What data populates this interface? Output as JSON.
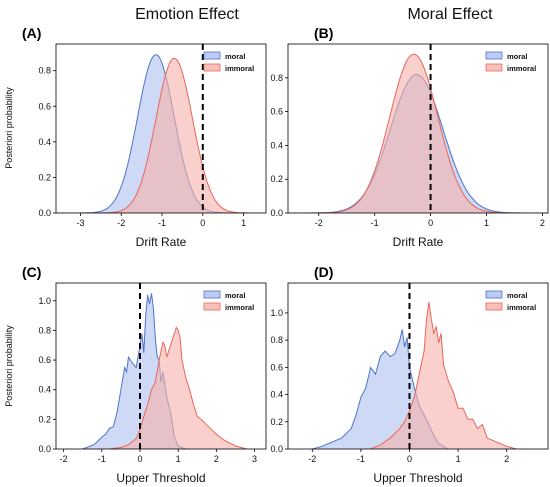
{
  "column_titles": [
    "Emotion Effect",
    "Moral Effect"
  ],
  "colors": {
    "moral_fill": "#aebff0",
    "moral_line": "#4e74c9",
    "immoral_fill": "#f6b0aa",
    "immoral_line": "#e8665a"
  },
  "chart_data": [
    {
      "type": "area",
      "label": "(A)",
      "xlabel": "Drift Rate",
      "ylabel": "Posteriori probability",
      "xlim": [
        -3.6,
        1.55
      ],
      "ylim": [
        0,
        0.95
      ],
      "xticks": [
        -3,
        -2,
        -1,
        0,
        1
      ],
      "yticks": [
        0.0,
        0.2,
        0.4,
        0.6,
        0.8
      ],
      "yticklabels": [
        "0.0",
        "0.2",
        "0.4",
        "0.6",
        "0.8"
      ],
      "vline": 0,
      "legend_position": "top-right",
      "series": [
        {
          "name": "moral",
          "shape": "smooth",
          "mean": -1.15,
          "sd": 0.45,
          "peak": 0.89
        },
        {
          "name": "immoral",
          "shape": "smooth",
          "mean": -0.7,
          "sd": 0.45,
          "peak": 0.87
        }
      ]
    },
    {
      "type": "area",
      "label": "(B)",
      "xlabel": "Drift Rate",
      "ylabel": "",
      "xlim": [
        -2.55,
        2.1
      ],
      "ylim": [
        0,
        1.0
      ],
      "xticks": [
        -2,
        -1,
        0,
        1,
        2
      ],
      "yticks": [
        0.0,
        0.2,
        0.4,
        0.6,
        0.8
      ],
      "yticklabels": [
        "0.0",
        "0.2",
        "0.4",
        "0.6",
        "0.8"
      ],
      "vline": 0,
      "legend_position": "top-right",
      "series": [
        {
          "name": "moral",
          "shape": "smooth",
          "mean": -0.25,
          "sd": 0.47,
          "peak": 0.82
        },
        {
          "name": "immoral",
          "shape": "smooth",
          "mean": -0.3,
          "sd": 0.43,
          "peak": 0.94
        }
      ]
    },
    {
      "type": "area",
      "label": "(C)",
      "xlabel": "Upper Threshold",
      "ylabel": "Posteriori probability",
      "xlim": [
        -2.2,
        3.3
      ],
      "ylim": [
        0,
        1.12
      ],
      "xticks": [
        -2,
        -1,
        0,
        1,
        2,
        3
      ],
      "yticks": [
        0.0,
        0.2,
        0.4,
        0.6,
        0.8,
        1.0
      ],
      "yticklabels": [
        "0.0",
        "0.2",
        "0.4",
        "0.6",
        "0.8",
        "1.0"
      ],
      "vline": 0,
      "legend_position": "top-right",
      "series": [
        {
          "name": "moral",
          "shape": "jagged",
          "x": [
            -1.5,
            -1.2,
            -1.0,
            -0.9,
            -0.8,
            -0.7,
            -0.6,
            -0.5,
            -0.4,
            -0.35,
            -0.3,
            -0.2,
            -0.1,
            0.0,
            0.05,
            0.1,
            0.15,
            0.2,
            0.25,
            0.3,
            0.35,
            0.4,
            0.45,
            0.5,
            0.55,
            0.6,
            0.7,
            0.8,
            0.9,
            1.0,
            1.2
          ],
          "y": [
            0.0,
            0.03,
            0.08,
            0.1,
            0.14,
            0.15,
            0.25,
            0.4,
            0.55,
            0.52,
            0.62,
            0.58,
            0.55,
            0.7,
            0.78,
            0.65,
            0.9,
            1.04,
            0.98,
            1.05,
            0.95,
            0.75,
            0.62,
            0.6,
            0.45,
            0.52,
            0.35,
            0.25,
            0.08,
            0.02,
            0.0
          ]
        },
        {
          "name": "immoral",
          "shape": "jagged",
          "x": [
            -0.8,
            -0.5,
            -0.3,
            -0.1,
            0.0,
            0.1,
            0.2,
            0.3,
            0.4,
            0.5,
            0.6,
            0.65,
            0.7,
            0.8,
            0.9,
            0.95,
            1.0,
            1.05,
            1.1,
            1.2,
            1.3,
            1.4,
            1.5,
            1.6,
            1.8,
            2.0,
            2.2,
            2.5,
            2.8
          ],
          "y": [
            0.0,
            0.01,
            0.03,
            0.07,
            0.13,
            0.22,
            0.3,
            0.4,
            0.45,
            0.6,
            0.72,
            0.7,
            0.62,
            0.7,
            0.78,
            0.82,
            0.8,
            0.75,
            0.6,
            0.48,
            0.4,
            0.3,
            0.22,
            0.2,
            0.15,
            0.1,
            0.06,
            0.02,
            0.0
          ]
        }
      ]
    },
    {
      "type": "area",
      "label": "(D)",
      "xlabel": "Upper Threshold",
      "ylabel": "",
      "xlim": [
        -2.5,
        2.85
      ],
      "ylim": [
        0,
        1.22
      ],
      "xticks": [
        -2,
        -1,
        0,
        1,
        2
      ],
      "yticks": [
        0.0,
        0.2,
        0.4,
        0.6,
        0.8,
        1.0
      ],
      "yticklabels": [
        "0.0",
        "0.2",
        "0.4",
        "0.6",
        "0.8",
        "1.0"
      ],
      "vline": 0,
      "legend_position": "top-right",
      "series": [
        {
          "name": "moral",
          "shape": "jagged",
          "x": [
            -2.0,
            -1.8,
            -1.6,
            -1.4,
            -1.2,
            -1.1,
            -1.0,
            -0.9,
            -0.8,
            -0.7,
            -0.6,
            -0.5,
            -0.4,
            -0.3,
            -0.2,
            -0.15,
            -0.1,
            -0.05,
            0.0,
            0.1,
            0.2,
            0.3,
            0.4,
            0.5,
            0.6,
            0.8
          ],
          "y": [
            0.0,
            0.02,
            0.05,
            0.08,
            0.15,
            0.25,
            0.38,
            0.45,
            0.6,
            0.55,
            0.68,
            0.72,
            0.68,
            0.7,
            0.8,
            0.88,
            0.75,
            0.82,
            0.6,
            0.45,
            0.32,
            0.25,
            0.18,
            0.1,
            0.04,
            0.0
          ]
        },
        {
          "name": "immoral",
          "shape": "jagged",
          "x": [
            -0.8,
            -0.6,
            -0.4,
            -0.2,
            -0.1,
            0.0,
            0.1,
            0.2,
            0.3,
            0.35,
            0.4,
            0.45,
            0.5,
            0.55,
            0.6,
            0.65,
            0.7,
            0.8,
            0.9,
            1.0,
            1.1,
            1.2,
            1.3,
            1.4,
            1.5,
            1.6,
            1.8,
            2.0,
            2.2
          ],
          "y": [
            0.0,
            0.03,
            0.08,
            0.15,
            0.2,
            0.28,
            0.38,
            0.55,
            0.72,
            0.95,
            1.08,
            0.95,
            0.85,
            0.9,
            0.78,
            0.85,
            0.62,
            0.5,
            0.42,
            0.3,
            0.3,
            0.22,
            0.22,
            0.15,
            0.18,
            0.08,
            0.05,
            0.02,
            0.0
          ]
        }
      ]
    }
  ]
}
